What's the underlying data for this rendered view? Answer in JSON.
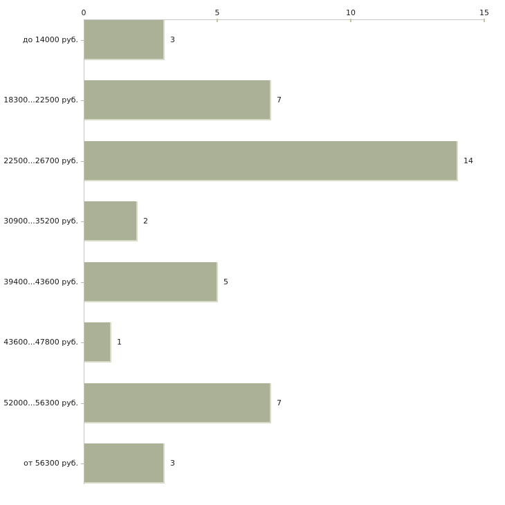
{
  "chart_data": {
    "type": "bar",
    "orientation": "horizontal",
    "title": "",
    "xlabel": "",
    "ylabel": "",
    "categories": [
      "до 14000 руб.",
      "18300...22500 руб.",
      "22500...26700 руб.",
      "30900...35200 руб.",
      "39400...43600 руб.",
      "43600...47800 руб.",
      "52000...56300 руб.",
      "от 56300 руб."
    ],
    "values": [
      3,
      7,
      14,
      2,
      5,
      1,
      7,
      3
    ],
    "xlim": [
      0,
      15
    ],
    "x_ticks": [
      0,
      5,
      10,
      15
    ],
    "grid": false,
    "legend": false,
    "colors": {
      "bar_fill": "#abb197",
      "bar_edge_light": "#d9dbc9",
      "axis_line": "#c6c6c6",
      "x_tick_mark": "#c6c49f",
      "y_tick_mark": "#b5b5b5",
      "text": "#1a1a1a",
      "background": "#ffffff"
    }
  }
}
